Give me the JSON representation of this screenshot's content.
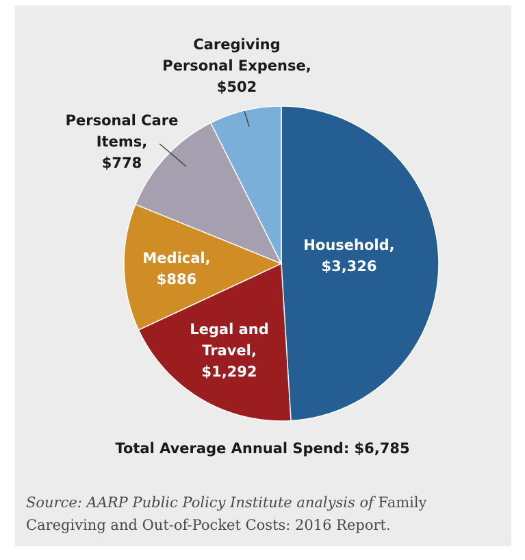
{
  "chart_data": {
    "type": "pie",
    "slices": [
      {
        "label": "Household,",
        "value_label": "$3,326",
        "value": 3326,
        "color": "#245e93"
      },
      {
        "label": "Legal and Travel,",
        "value_label": "$1,292",
        "value": 1292,
        "color": "#9b1d20"
      },
      {
        "label": "Medical,",
        "value_label": "$886",
        "value": 886,
        "color": "#d08d26"
      },
      {
        "label": "Personal Care Items,",
        "value_label": "$778",
        "value": 778,
        "color": "#a59faf"
      },
      {
        "label": "Caregiving Personal Expense,",
        "value_label": "$502",
        "value": 502,
        "color": "#7aafd9"
      }
    ],
    "total_label": "Total Average Annual Spend: $6,785"
  },
  "source": {
    "italic_prefix": "Source: AARP Public Policy Institute analysis of",
    "text": " Family Caregiving and Out-of-Pocket Costs: 2016 Report."
  }
}
